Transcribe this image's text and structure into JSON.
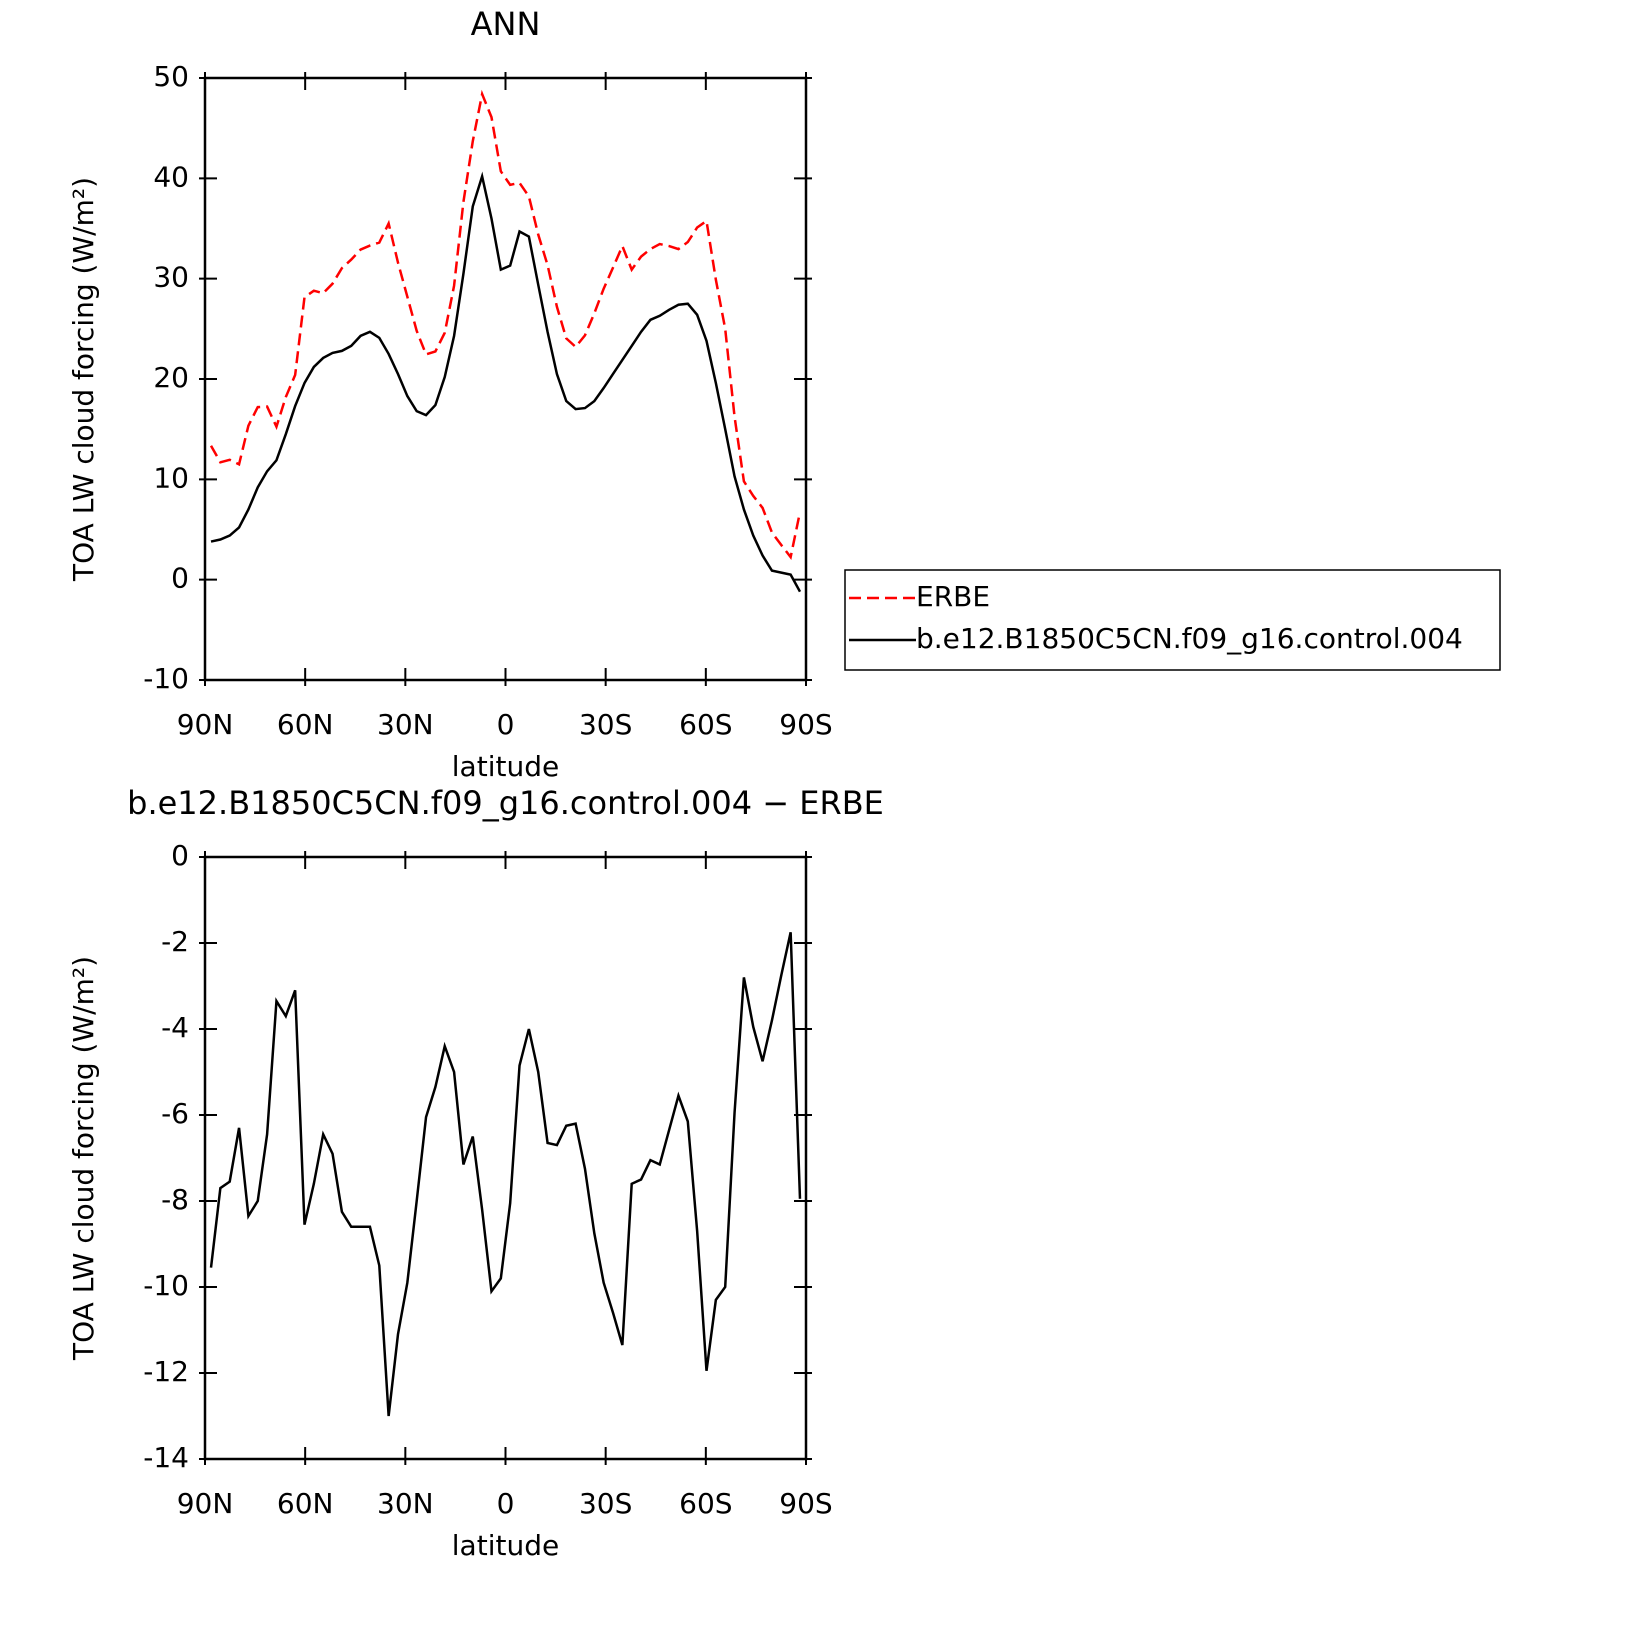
{
  "chart_data": [
    {
      "type": "line",
      "title": "ANN",
      "xlabel": "latitude",
      "ylabel": "TOA LW cloud forcing (W/m²)",
      "x": [
        88.2,
        85.4,
        82.6,
        79.8,
        77.0,
        74.2,
        71.4,
        68.6,
        65.8,
        63.0,
        60.2,
        57.4,
        54.6,
        51.8,
        49.0,
        46.2,
        43.4,
        40.6,
        37.8,
        35.0,
        32.2,
        29.4,
        26.6,
        23.8,
        21.0,
        18.2,
        15.4,
        12.6,
        9.8,
        7.0,
        4.2,
        1.4,
        -1.4,
        -4.2,
        -7.0,
        -9.8,
        -12.6,
        -15.4,
        -18.2,
        -21.0,
        -23.8,
        -26.6,
        -29.4,
        -32.2,
        -35.0,
        -37.8,
        -40.6,
        -43.4,
        -46.2,
        -49.0,
        -51.8,
        -54.6,
        -57.4,
        -60.2,
        -63.0,
        -65.8,
        -68.6,
        -71.4,
        -74.2,
        -77.0,
        -79.8,
        -82.6,
        -85.4,
        -88.2
      ],
      "series": [
        {
          "name": "ERBE",
          "color": "#ff0000",
          "linestyle": "dashed",
          "values": [
            13.35,
            11.7,
            11.95,
            11.5,
            15.35,
            17.2,
            17.25,
            15.25,
            18.2,
            20.4,
            28.15,
            28.8,
            28.55,
            29.5,
            31.05,
            31.9,
            32.9,
            33.3,
            33.6,
            35.5,
            31.6,
            28.2,
            24.8,
            22.45,
            22.75,
            24.6,
            29.3,
            37.65,
            43.7,
            48.4,
            46.1,
            40.7,
            39.35,
            39.55,
            38.2,
            34.4,
            31.35,
            27.2,
            24.05,
            23.2,
            24.35,
            26.55,
            29.0,
            31.1,
            33.25,
            30.9,
            32.2,
            32.95,
            33.45,
            33.25,
            32.95,
            33.65,
            35.1,
            35.75,
            29.9,
            25.0,
            16.25,
            9.8,
            8.35,
            7.15,
            4.7,
            3.45,
            2.25,
            6.75
          ]
        },
        {
          "name": "b.e12.B1850C5CN.f09_g16.control.004",
          "color": "#000000",
          "linestyle": "solid",
          "values": [
            3.8,
            4.0,
            4.4,
            5.2,
            7.0,
            9.2,
            10.8,
            11.9,
            14.5,
            17.3,
            19.6,
            21.2,
            22.1,
            22.6,
            22.8,
            23.3,
            24.3,
            24.7,
            24.1,
            22.5,
            20.5,
            18.3,
            16.8,
            16.4,
            17.4,
            20.2,
            24.3,
            30.5,
            37.2,
            40.2,
            36.0,
            30.9,
            31.3,
            34.7,
            34.2,
            29.4,
            24.7,
            20.5,
            17.8,
            17.0,
            17.1,
            17.8,
            19.1,
            20.5,
            21.9,
            23.3,
            24.7,
            25.9,
            26.3,
            26.9,
            27.4,
            27.5,
            26.4,
            23.8,
            19.6,
            15.0,
            10.3,
            7.0,
            4.4,
            2.4,
            0.9,
            0.7,
            0.5,
            -1.2
          ]
        }
      ],
      "xlim": [
        90,
        -90
      ],
      "xticks": [
        {
          "value": 90,
          "label": "90N"
        },
        {
          "value": 60,
          "label": "60N"
        },
        {
          "value": 30,
          "label": "30N"
        },
        0,
        {
          "value": -30,
          "label": "30S"
        },
        {
          "value": -60,
          "label": "60S"
        },
        {
          "value": -90,
          "label": "90S"
        }
      ],
      "ylim": [
        -10,
        50
      ],
      "yticks": [
        -10,
        0,
        10,
        20,
        30,
        40,
        50
      ],
      "grid": false,
      "legend": "right"
    },
    {
      "type": "line",
      "title": "b.e12.B1850C5CN.f09_g16.control.004 − ERBE",
      "xlabel": "latitude",
      "ylabel": "TOA LW cloud forcing (W/m²)",
      "x": [
        88.2,
        85.4,
        82.6,
        79.8,
        77.0,
        74.2,
        71.4,
        68.6,
        65.8,
        63.0,
        60.2,
        57.4,
        54.6,
        51.8,
        49.0,
        46.2,
        43.4,
        40.6,
        37.8,
        35.0,
        32.2,
        29.4,
        26.6,
        23.8,
        21.0,
        18.2,
        15.4,
        12.6,
        9.8,
        7.0,
        4.2,
        1.4,
        -1.4,
        -4.2,
        -7.0,
        -9.8,
        -12.6,
        -15.4,
        -18.2,
        -21.0,
        -23.8,
        -26.6,
        -29.4,
        -32.2,
        -35.0,
        -37.8,
        -40.6,
        -43.4,
        -46.2,
        -49.0,
        -51.8,
        -54.6,
        -57.4,
        -60.2,
        -63.0,
        -65.8,
        -68.6,
        -71.4,
        -74.2,
        -77.0,
        -79.8,
        -82.6,
        -85.4,
        -88.2
      ],
      "color": "#000000",
      "values": [
        -9.55,
        -7.7,
        -7.55,
        -6.3,
        -8.35,
        -8.0,
        -6.45,
        -3.35,
        -3.7,
        -3.1,
        -8.55,
        -7.6,
        -6.45,
        -6.9,
        -8.25,
        -8.6,
        -8.6,
        -8.6,
        -9.5,
        -13.0,
        -11.1,
        -9.9,
        -8.0,
        -6.05,
        -5.35,
        -4.4,
        -5.0,
        -7.15,
        -6.5,
        -8.2,
        -10.1,
        -9.8,
        -8.05,
        -4.85,
        -4.0,
        -5.0,
        -6.65,
        -6.7,
        -6.25,
        -6.2,
        -7.25,
        -8.75,
        -9.9,
        -10.6,
        -11.35,
        -7.6,
        -7.5,
        -7.05,
        -7.15,
        -6.35,
        -5.55,
        -6.15,
        -8.7,
        -11.95,
        -10.3,
        -10.0,
        -5.95,
        -2.8,
        -3.95,
        -4.75,
        -3.8,
        -2.75,
        -1.75,
        -7.95
      ],
      "xlim": [
        90,
        -90
      ],
      "xticks": [
        {
          "value": 90,
          "label": "90N"
        },
        {
          "value": 60,
          "label": "60N"
        },
        {
          "value": 30,
          "label": "30N"
        },
        0,
        {
          "value": -30,
          "label": "30S"
        },
        {
          "value": -60,
          "label": "60S"
        },
        {
          "value": -90,
          "label": "90S"
        }
      ],
      "ylim": [
        -14,
        0
      ],
      "yticks": [
        -14,
        -12,
        -10,
        -8,
        -6,
        -4,
        -2,
        0
      ],
      "grid": false
    }
  ]
}
